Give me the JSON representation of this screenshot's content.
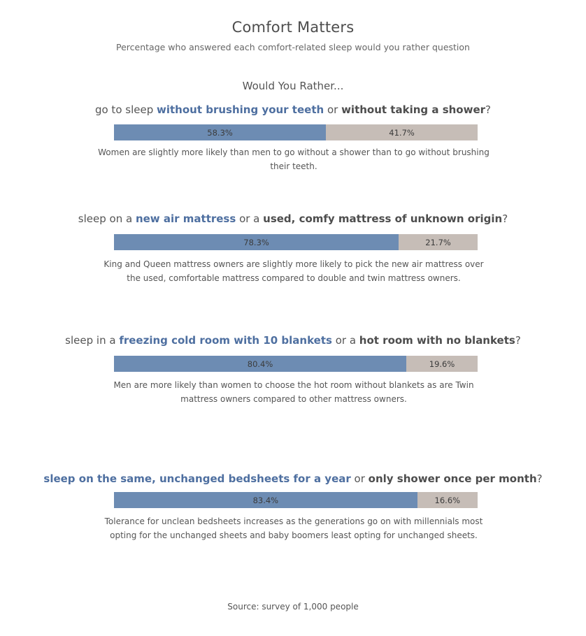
{
  "title": "Comfort Matters",
  "subtitle": "Percentage who answered  each comfort-related sleep would you rather question",
  "header": "Would You Rather...",
  "source": "Source: survey of 1,000 people",
  "colors": {
    "option_a": "#6d8cb3",
    "option_b": "#c6bdb7",
    "highlight_text": "#4e6fa0"
  },
  "chart_data": {
    "type": "bar",
    "stacked": true,
    "orientation": "horizontal",
    "xlim": [
      0,
      100
    ],
    "questions": [
      {
        "prefix": "go to sleep ",
        "option_a": "without brushing your teeth",
        "mid": " or ",
        "option_b": "without taking a shower",
        "suffix": "?",
        "value_a": 58.3,
        "value_b": 41.7,
        "label_a": "58.3%",
        "label_b": "41.7%",
        "note": "Women are slightly more likely than men to go without a shower than to go without brushing their teeth."
      },
      {
        "prefix": "sleep on a ",
        "option_a": "new air mattress",
        "mid": " or a ",
        "option_b": "used, comfy mattress of unknown origin",
        "suffix": "?",
        "value_a": 78.3,
        "value_b": 21.7,
        "label_a": "78.3%",
        "label_b": "21.7%",
        "note": "King and Queen mattress owners are slightly more likely to pick the new air mattress over the used, comfortable mattress compared to double and twin mattress owners."
      },
      {
        "prefix": "sleep in a ",
        "option_a": "freezing cold room with 10 blankets",
        "mid": " or a ",
        "option_b": "hot room with no blankets",
        "suffix": "?",
        "value_a": 80.4,
        "value_b": 19.6,
        "label_a": "80.4%",
        "label_b": "19.6%",
        "note": "Men are more likely than women to choose the hot room without blankets as are Twin mattress owners compared to other mattress owners."
      },
      {
        "prefix": "",
        "option_a": "sleep on the same, unchanged bedsheets for a year",
        "mid": " or ",
        "option_b": "only shower once per month",
        "suffix": "?",
        "value_a": 83.4,
        "value_b": 16.6,
        "label_a": "83.4%",
        "label_b": "16.6%",
        "note": "Tolerance for unclean bedsheets increases as the generations go on with millennials most opting for the unchanged sheets and baby boomers least opting for unchanged sheets."
      }
    ]
  }
}
